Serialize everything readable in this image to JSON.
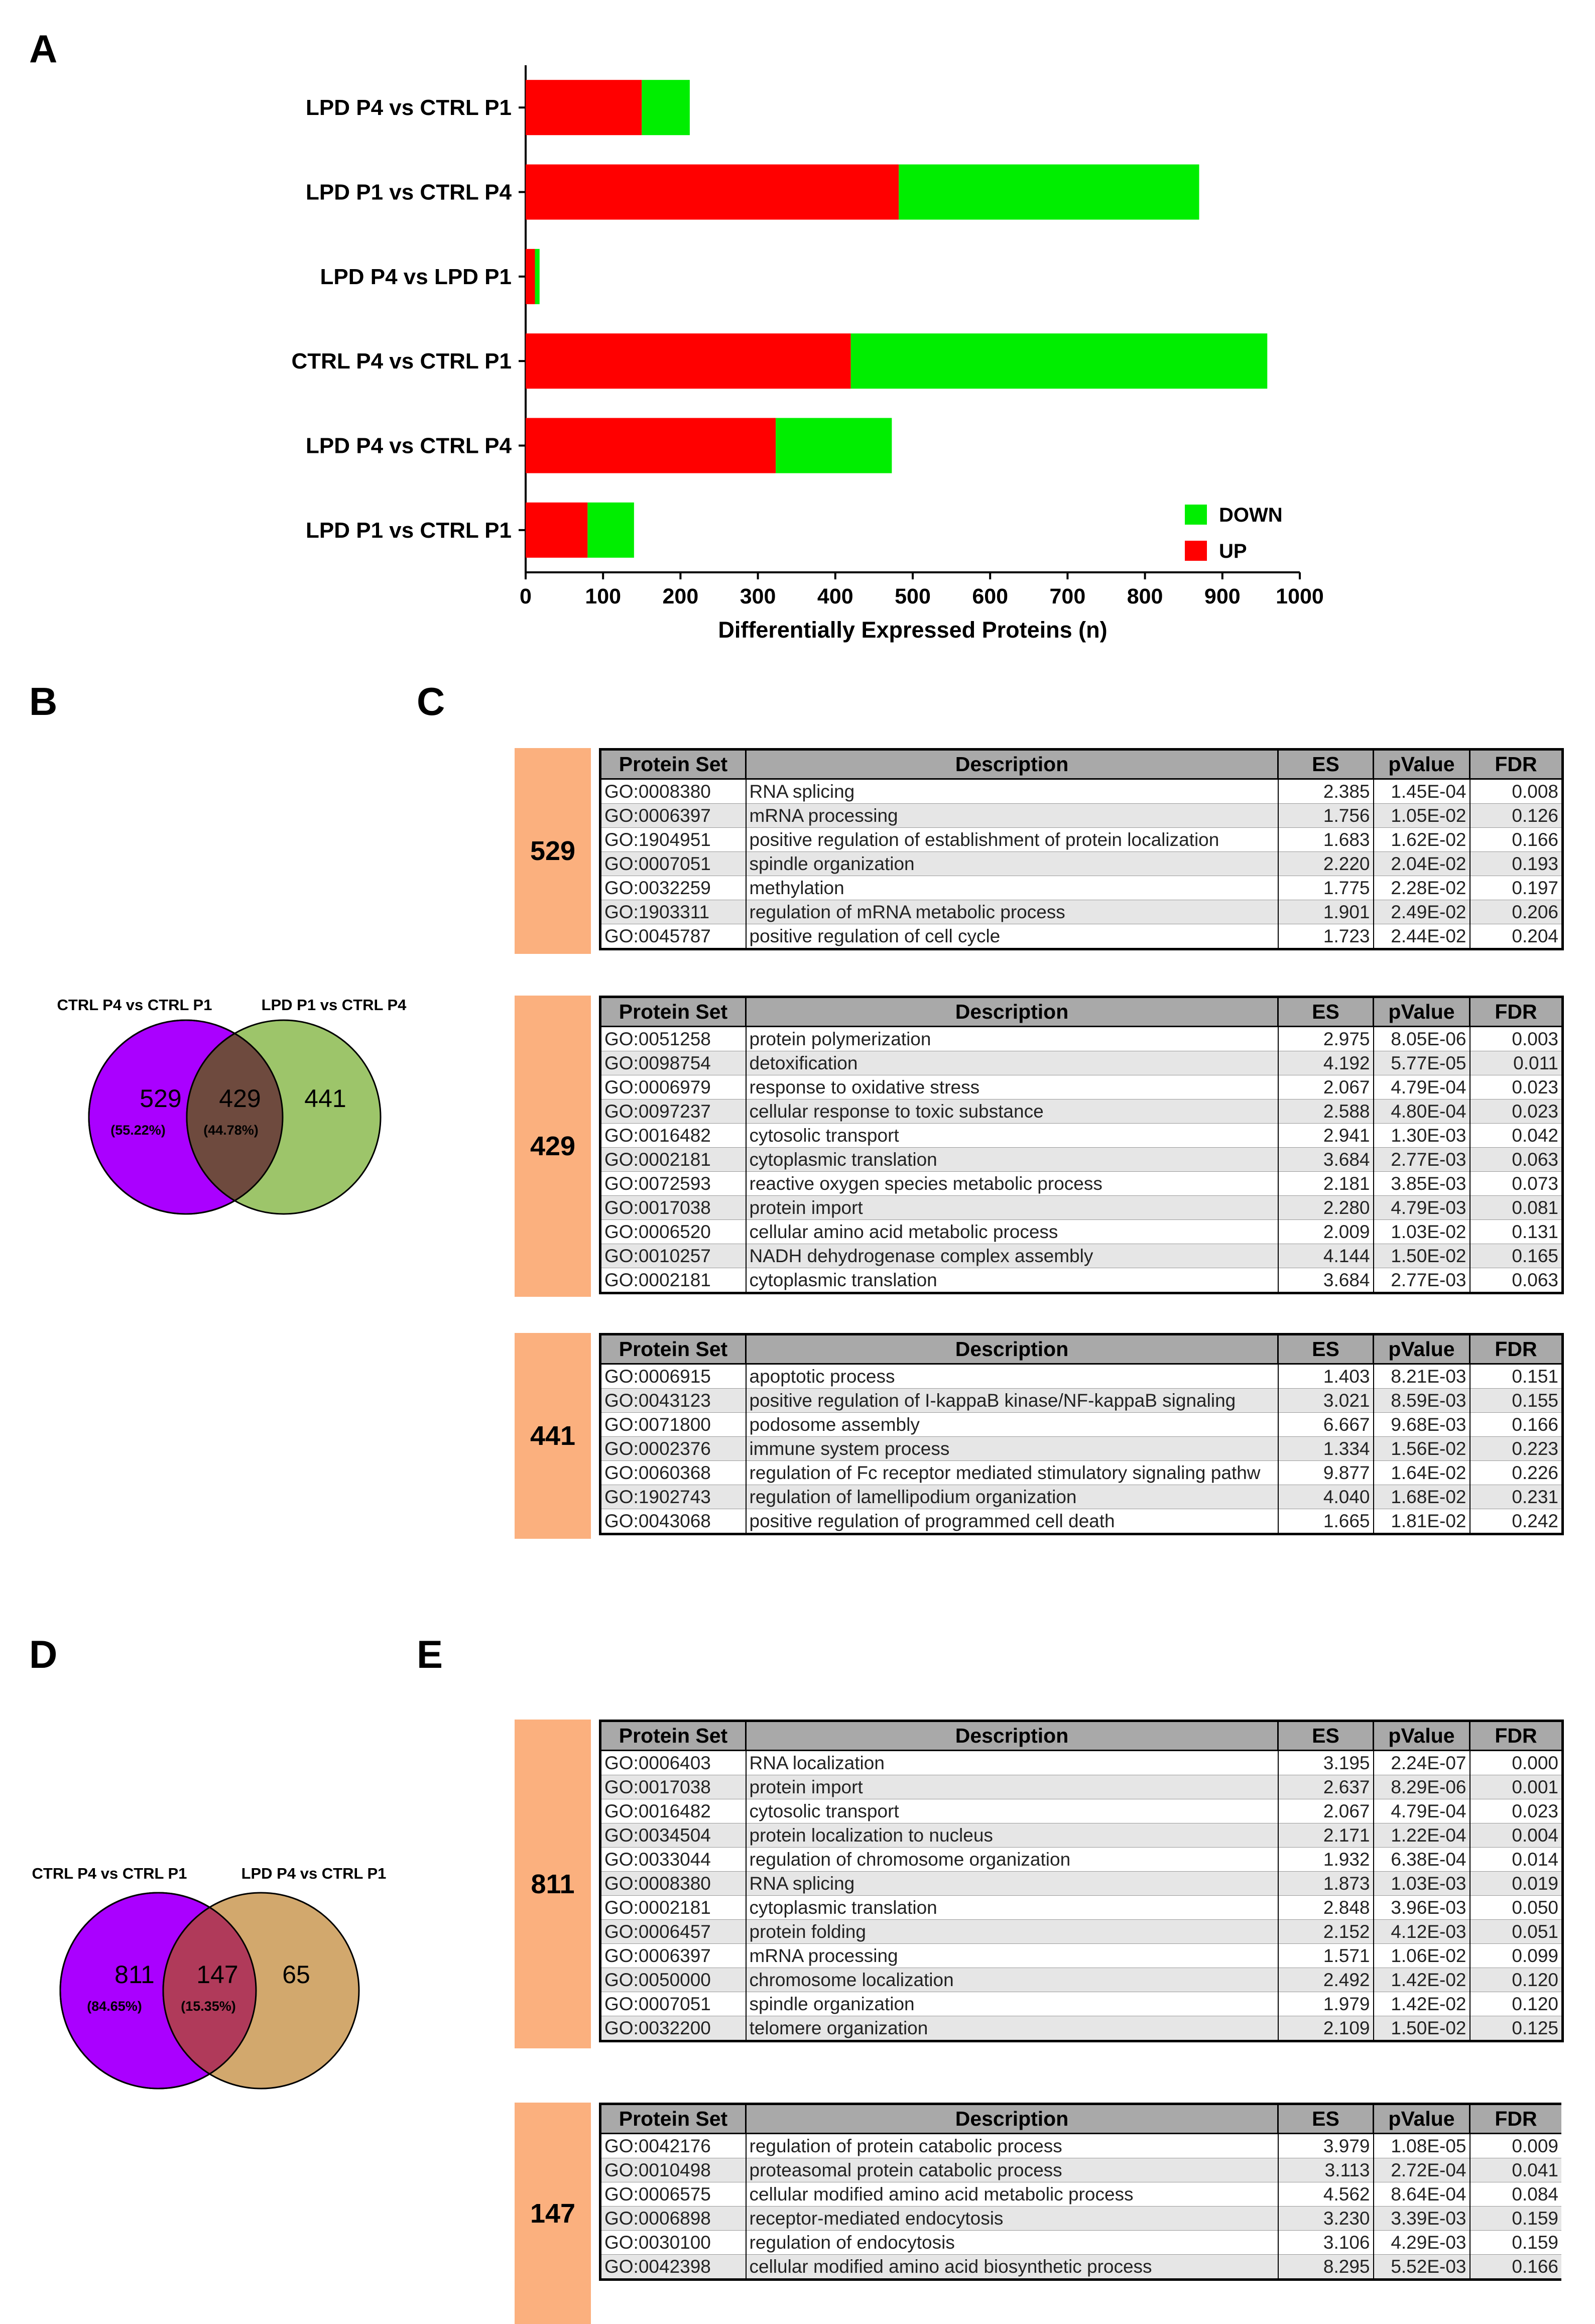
{
  "panels": {
    "a": "A",
    "b": "B",
    "c": "C",
    "d": "D",
    "e": "E"
  },
  "chart_data": {
    "type": "bar",
    "orientation": "horizontal",
    "stacked": true,
    "categories": [
      "LPD P4 vs CTRL P1",
      "LPD P1 vs CTRL P4",
      "LPD P4 vs LPD P1",
      "CTRL P4 vs CTRL P1",
      "LPD P4 vs CTRL P4",
      "LPD P1 vs CTRL P1"
    ],
    "series": [
      {
        "name": "UP",
        "color": "#ff0000",
        "values": [
          150,
          482,
          12,
          420,
          323,
          80
        ]
      },
      {
        "name": "DOWN",
        "color": "#00ee00",
        "values": [
          62,
          388,
          6,
          538,
          150,
          60
        ]
      }
    ],
    "xlabel": "Differentially Expressed Proteins (n)",
    "xlim": [
      0,
      1000
    ],
    "xticks": [
      0,
      100,
      200,
      300,
      400,
      500,
      600,
      700,
      800,
      900,
      1000
    ],
    "legend_position": "bottom-right",
    "legend_order": [
      "DOWN",
      "UP"
    ]
  },
  "venn_b": {
    "left_label": "CTRL P4 vs CTRL P1",
    "right_label": "LPD P1 vs CTRL P4",
    "left_count": "529",
    "left_pct": "(55.22%)",
    "mid_count": "429",
    "mid_pct": "(44.78%)",
    "right_count": "441",
    "left_color": "#aa00ff",
    "right_color": "#9dc56a",
    "overlap_color": "#6e4a3e"
  },
  "venn_d": {
    "left_label": "CTRL P4 vs CTRL P1",
    "right_label": "LPD P4 vs CTRL P1",
    "left_count": "811",
    "left_pct": "(84.65%)",
    "mid_count": "147",
    "mid_pct": "(15.35%)",
    "right_count": "65",
    "left_color": "#aa00ff",
    "right_color": "#d2a86d",
    "overlap_color": "#b03a5a"
  },
  "table_headers": [
    "Protein Set",
    "Description",
    "ES",
    "pValue",
    "FDR"
  ],
  "tables_c": [
    {
      "count": "529",
      "rows": [
        [
          "GO:0008380",
          "RNA splicing",
          "2.385",
          "1.45E-04",
          "0.008"
        ],
        [
          "GO:0006397",
          "mRNA processing",
          "1.756",
          "1.05E-02",
          "0.126"
        ],
        [
          "GO:1904951",
          "positive regulation of establishment of protein localization",
          "1.683",
          "1.62E-02",
          "0.166"
        ],
        [
          "GO:0007051",
          "spindle organization",
          "2.220",
          "2.04E-02",
          "0.193"
        ],
        [
          "GO:0032259",
          "methylation",
          "1.775",
          "2.28E-02",
          "0.197"
        ],
        [
          "GO:1903311",
          "regulation of mRNA metabolic process",
          "1.901",
          "2.49E-02",
          "0.206"
        ],
        [
          "GO:0045787",
          "positive regulation of cell cycle",
          "1.723",
          "2.44E-02",
          "0.204"
        ]
      ]
    },
    {
      "count": "429",
      "rows": [
        [
          "GO:0051258",
          "protein polymerization",
          "2.975",
          "8.05E-06",
          "0.003"
        ],
        [
          "GO:0098754",
          "detoxification",
          "4.192",
          "5.77E-05",
          "0.011"
        ],
        [
          "GO:0006979",
          "response to oxidative stress",
          "2.067",
          "4.79E-04",
          "0.023"
        ],
        [
          "GO:0097237",
          "cellular response to toxic substance",
          "2.588",
          "4.80E-04",
          "0.023"
        ],
        [
          "GO:0016482",
          "cytosolic transport",
          "2.941",
          "1.30E-03",
          "0.042"
        ],
        [
          "GO:0002181",
          "cytoplasmic translation",
          "3.684",
          "2.77E-03",
          "0.063"
        ],
        [
          "GO:0072593",
          "reactive oxygen species metabolic process",
          "2.181",
          "3.85E-03",
          "0.073"
        ],
        [
          "GO:0017038",
          "protein import",
          "2.280",
          "4.79E-03",
          "0.081"
        ],
        [
          "GO:0006520",
          "cellular amino acid metabolic process",
          "2.009",
          "1.03E-02",
          "0.131"
        ],
        [
          "GO:0010257",
          "NADH dehydrogenase complex assembly",
          "4.144",
          "1.50E-02",
          "0.165"
        ],
        [
          "GO:0002181",
          "cytoplasmic translation",
          "3.684",
          "2.77E-03",
          "0.063"
        ]
      ]
    },
    {
      "count": "441",
      "rows": [
        [
          "GO:0006915",
          "apoptotic process",
          "1.403",
          "8.21E-03",
          "0.151"
        ],
        [
          "GO:0043123",
          "positive regulation of I-kappaB kinase/NF-kappaB signaling",
          "3.021",
          "8.59E-03",
          "0.155"
        ],
        [
          "GO:0071800",
          "podosome assembly",
          "6.667",
          "9.68E-03",
          "0.166"
        ],
        [
          "GO:0002376",
          "immune system process",
          "1.334",
          "1.56E-02",
          "0.223"
        ],
        [
          "GO:0060368",
          "regulation of Fc receptor mediated stimulatory signaling pathw",
          "9.877",
          "1.64E-02",
          "0.226"
        ],
        [
          "GO:1902743",
          "regulation of lamellipodium organization",
          "4.040",
          "1.68E-02",
          "0.231"
        ],
        [
          "GO:0043068",
          "positive regulation of programmed cell death",
          "1.665",
          "1.81E-02",
          "0.242"
        ]
      ]
    }
  ],
  "tables_e": [
    {
      "count": "811",
      "rows": [
        [
          "GO:0006403",
          "RNA localization",
          "3.195",
          "2.24E-07",
          "0.000"
        ],
        [
          "GO:0017038",
          "protein import",
          "2.637",
          "8.29E-06",
          "0.001"
        ],
        [
          "GO:0016482",
          "cytosolic transport",
          "2.067",
          "4.79E-04",
          "0.023"
        ],
        [
          "GO:0034504",
          "protein localization to nucleus",
          "2.171",
          "1.22E-04",
          "0.004"
        ],
        [
          "GO:0033044",
          "regulation of chromosome organization",
          "1.932",
          "6.38E-04",
          "0.014"
        ],
        [
          "GO:0008380",
          "RNA splicing",
          "1.873",
          "1.03E-03",
          "0.019"
        ],
        [
          "GO:0002181",
          "cytoplasmic translation",
          "2.848",
          "3.96E-03",
          "0.050"
        ],
        [
          "GO:0006457",
          "protein folding",
          "2.152",
          "4.12E-03",
          "0.051"
        ],
        [
          "GO:0006397",
          "mRNA processing",
          "1.571",
          "1.06E-02",
          "0.099"
        ],
        [
          "GO:0050000",
          "chromosome localization",
          "2.492",
          "1.42E-02",
          "0.120"
        ],
        [
          "GO:0007051",
          "spindle organization",
          "1.979",
          "1.42E-02",
          "0.120"
        ],
        [
          "GO:0032200",
          "telomere organization",
          "2.109",
          "1.50E-02",
          "0.125"
        ]
      ]
    },
    {
      "count": "147",
      "rows": [
        [
          "GO:0042176",
          "regulation of protein catabolic process",
          "3.979",
          "1.08E-05",
          "0.009"
        ],
        [
          "GO:0010498",
          "proteasomal protein catabolic process",
          "3.113",
          "2.72E-04",
          "0.041"
        ],
        [
          "GO:0006575",
          "cellular modified amino acid metabolic process",
          "4.562",
          "8.64E-04",
          "0.084"
        ],
        [
          "GO:0006898",
          "receptor-mediated endocytosis",
          "3.230",
          "3.39E-03",
          "0.159"
        ],
        [
          "GO:0030100",
          "regulation of endocytosis",
          "3.106",
          "4.29E-03",
          "0.159"
        ],
        [
          "GO:0042398",
          "cellular modified amino acid biosynthetic process",
          "8.295",
          "5.52E-03",
          "0.166"
        ]
      ]
    }
  ]
}
